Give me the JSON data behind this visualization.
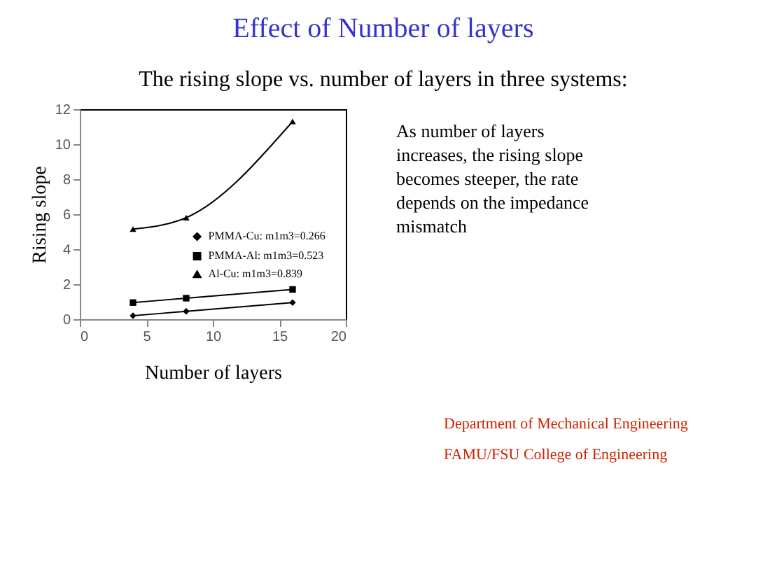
{
  "chart_data": {
    "type": "line",
    "title": "Effect of Number of layers",
    "subtitle": "The rising slope vs. number of layers in three systems:",
    "xlabel": "Number of layers",
    "ylabel": "Rising slope",
    "x": [
      4,
      8,
      16
    ],
    "series": [
      {
        "name": "PMMA-Cu: m1m3=0.266",
        "color": "#000000",
        "marker": "diamond",
        "values": [
          0.2,
          0.45,
          0.95
        ]
      },
      {
        "name": "PMMA-Al: m1m3=0.523",
        "color": "#000000",
        "marker": "square",
        "values": [
          0.95,
          1.2,
          1.7
        ]
      },
      {
        "name": "Al-Cu: m1m3=0.839",
        "color": "#000000",
        "marker": "triangle",
        "values": [
          5.15,
          5.8,
          11.3
        ]
      }
    ],
    "xlim": [
      0,
      20
    ],
    "xticks": [
      0,
      5,
      10,
      15,
      20
    ],
    "ylim": [
      0,
      12
    ],
    "yticks": [
      0,
      2,
      4,
      6,
      8,
      10,
      12
    ],
    "grid": false,
    "legend": "right",
    "line_style": "solid",
    "annotations": [
      "As number of layers increases, the rising slope becomes steeper, the rate depends on the impedance mismatch",
      "Department of Mechanical Engineering",
      "FAMU/FSU College of Engineering"
    ]
  }
}
